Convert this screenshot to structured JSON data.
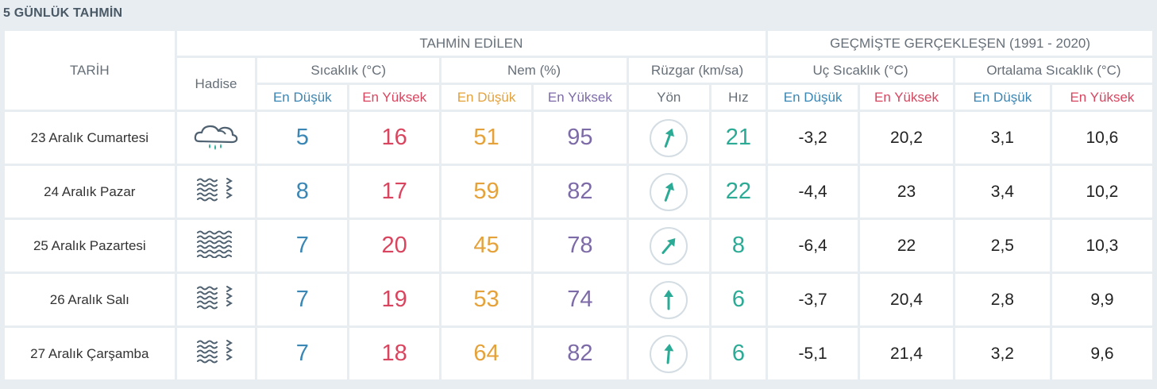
{
  "title": "5 GÜNLÜK TAHMİN",
  "header": {
    "tarih": "TARİH",
    "tahmin_edilen": "TAHMİN EDİLEN",
    "gecmiste": "GEÇMİŞTE GERÇEKLEŞEN (1991 - 2020)",
    "hadise": "Hadise",
    "sicaklik": "Sıcaklık (°C)",
    "nem": "Nem (%)",
    "ruzgar": "Rüzgar (km/sa)",
    "uc_sicaklik": "Uç Sıcaklık (°C)",
    "ortalama_sicaklik": "Ortalama Sıcaklık (°C)",
    "en_dusuk": "En Düşük",
    "en_yuksek": "En Yüksek",
    "yon": "Yön",
    "hiz": "Hız"
  },
  "colors": {
    "low": "#3a86b4",
    "high": "#d9455f",
    "humidity_low": "#e5a23a",
    "humidity_high": "#7d6ba8",
    "wind_speed": "#2bab95"
  },
  "rows": [
    {
      "date": "23 Aralık Cumartesi",
      "icon": "rain-cloud-icon",
      "temp_low": "5",
      "temp_high": "16",
      "hum_low": "51",
      "hum_high": "95",
      "wind_dir_deg": 20,
      "wind_speed": "21",
      "ext_low": "-3,2",
      "ext_high": "20,2",
      "avg_low": "3,1",
      "avg_high": "10,6"
    },
    {
      "date": "24 Aralık Pazar",
      "icon": "fog-wind-icon",
      "temp_low": "8",
      "temp_high": "17",
      "hum_low": "59",
      "hum_high": "82",
      "wind_dir_deg": 20,
      "wind_speed": "22",
      "ext_low": "-4,4",
      "ext_high": "23",
      "avg_low": "3,4",
      "avg_high": "10,2"
    },
    {
      "date": "25 Aralık Pazartesi",
      "icon": "fog-icon",
      "temp_low": "7",
      "temp_high": "20",
      "hum_low": "45",
      "hum_high": "78",
      "wind_dir_deg": 40,
      "wind_speed": "8",
      "ext_low": "-6,4",
      "ext_high": "22",
      "avg_low": "2,5",
      "avg_high": "10,3"
    },
    {
      "date": "26 Aralık Salı",
      "icon": "fog-wind-icon",
      "temp_low": "7",
      "temp_high": "19",
      "hum_low": "53",
      "hum_high": "74",
      "wind_dir_deg": 0,
      "wind_speed": "6",
      "ext_low": "-3,7",
      "ext_high": "20,4",
      "avg_low": "2,8",
      "avg_high": "9,9"
    },
    {
      "date": "27 Aralık Çarşamba",
      "icon": "fog-wind-icon",
      "temp_low": "7",
      "temp_high": "18",
      "hum_low": "64",
      "hum_high": "82",
      "wind_dir_deg": 5,
      "wind_speed": "6",
      "ext_low": "-5,1",
      "ext_high": "21,4",
      "avg_low": "3,2",
      "avg_high": "9,6"
    }
  ]
}
